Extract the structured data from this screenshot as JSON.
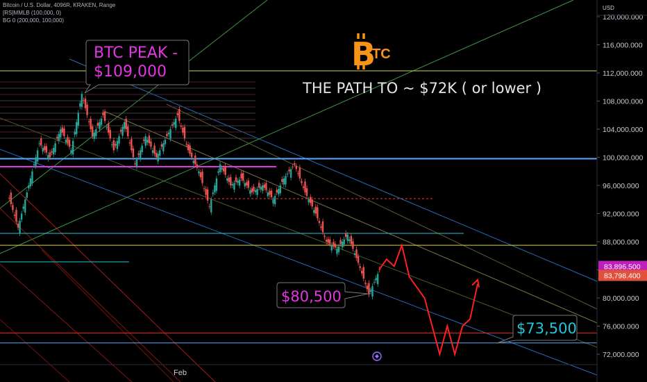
{
  "header": {
    "symbol_line": "Bitcoin / U.S. Dollar, 4096R, KRAKEN, Range",
    "indicator_1": "[RS]MMLB (100,000, 0)",
    "indicator_2": "BG 0 (200,000, 100,000)"
  },
  "axis": {
    "currency": "USD",
    "x_ticks": [
      "Feb"
    ]
  },
  "colors": {
    "background": "#000000",
    "bitcoin_orange": "#f7931a",
    "magenta": "#e535e5",
    "cyan": "#22c7d6",
    "green_channel": "#4caf50",
    "blue_channel": "#2f7fd6",
    "red_path": "#ff2020",
    "yellow_line": "#d4d44c",
    "badge_magenta": "#c01eb8",
    "badge_red": "#e0503a"
  },
  "logo": {
    "letters": "TC",
    "icon": "bitcoin-b-icon"
  },
  "chart_data": {
    "type": "line",
    "title": "THE PATH TO ~ $72K ( or lower )",
    "ylim": [
      70500,
      123000
    ],
    "y_ticks": [
      72000,
      76000,
      80000,
      84000,
      88000,
      92000,
      96000,
      100000,
      104000,
      108000,
      112000,
      116000,
      120000
    ],
    "y_tick_labels": [
      "72,000.000",
      "76,000.000",
      "80,000.000",
      "84,000.000",
      "88,000.000",
      "92,000.000",
      "96,000.000",
      "100,000.000",
      "104,000.000",
      "108,000.000",
      "112,000.000",
      "116,000.000",
      "120,000.000"
    ],
    "price_labels": [
      {
        "value": 83896.5,
        "label": "83,896.500",
        "color": "#c01eb8"
      },
      {
        "value": 83798.4,
        "label": "83,798.400",
        "color": "#e0503a"
      }
    ],
    "annotations": [
      {
        "text": "BTC PEAK -\n$109,000",
        "line1": "BTC PEAK -",
        "line2": "$109,000",
        "value": 109000,
        "color": "#e535e5"
      },
      {
        "text": "$80,500",
        "value": 80500,
        "color": "#e535e5"
      },
      {
        "text": "$73,500",
        "value": 73500,
        "color": "#22c7d6"
      }
    ],
    "horizontal_levels": [
      {
        "value": 112300,
        "color": "#d4d44c"
      },
      {
        "value": 99800,
        "color": "#5aa8ff"
      },
      {
        "value": 87500,
        "color": "#d4d44c"
      },
      {
        "value": 75000,
        "color": "#ff2020"
      },
      {
        "value": 73600,
        "color": "#5aa8ff"
      }
    ],
    "projected_path": {
      "name": "",
      "y": [
        84000,
        85500,
        84500,
        87500,
        83000,
        81500,
        80000,
        76000,
        72000,
        76000,
        72000,
        76000,
        77000,
        82000
      ]
    },
    "price_history": [
      95000,
      90000,
      96000,
      102000,
      100000,
      104000,
      101000,
      109000,
      103000,
      106000,
      101000,
      105000,
      99000,
      103000,
      100000,
      103000,
      106000,
      101000,
      98000,
      93000,
      99000,
      96000,
      97000,
      95000,
      96000,
      94000,
      97000,
      99000,
      95000,
      92000,
      88000,
      87000,
      89000,
      85000,
      80500,
      84000
    ]
  }
}
